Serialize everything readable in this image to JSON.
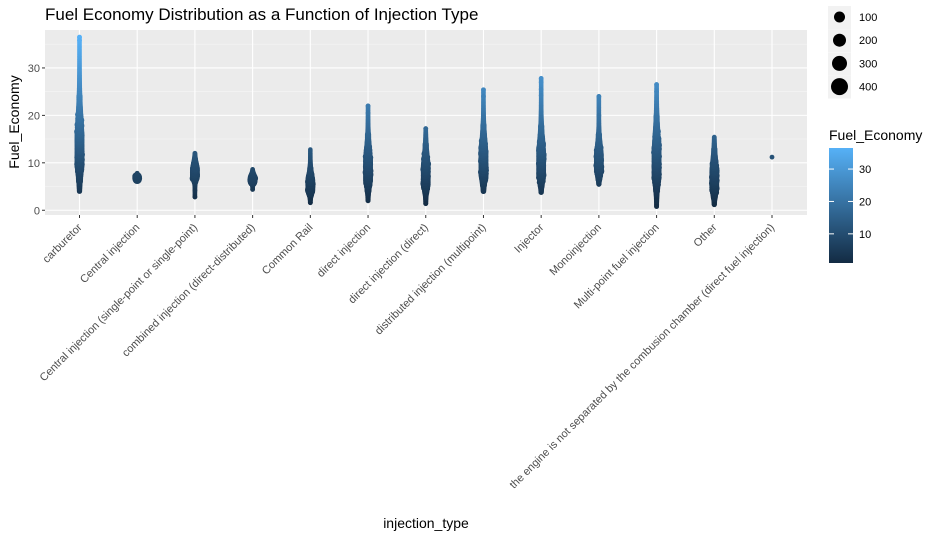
{
  "chart_data": {
    "type": "scatter",
    "title": "Fuel Economy Distribution as a Function of Injection Type",
    "xlabel": "injection_type",
    "ylabel": "Fuel_Economy",
    "ylim": [
      -1,
      38
    ],
    "yticks": [
      0,
      10,
      20,
      30
    ],
    "grid": true,
    "categories": [
      "carburetor",
      "Central injection",
      "Central injection (single-point or single-point)",
      "combined injection (direct-distributed)",
      "Common Rail",
      "direct injection",
      "direct injection (direct)",
      "distributed injection (multipoint)",
      "Injector",
      "Monoinjection",
      "Multi-point fuel injection",
      "Other",
      "the engine is not separated by the combusion chamber (direct fuel injection)"
    ],
    "series": [
      {
        "category": "carburetor",
        "min": 4,
        "max": 36.5,
        "bulk_low": 6,
        "bulk_high": 24,
        "outliers": [
          36.5,
          35.8
        ]
      },
      {
        "category": "Central injection",
        "min": 6.2,
        "max": 7.8,
        "bulk_low": 6.3,
        "bulk_high": 7.5,
        "outliers": []
      },
      {
        "category": "Central injection (single-point or single-point)",
        "min": 2.8,
        "max": 12,
        "bulk_low": 6,
        "bulk_high": 11,
        "outliers": [
          2.8,
          4.2
        ]
      },
      {
        "category": "combined injection (direct-distributed)",
        "min": 4.4,
        "max": 8.6,
        "bulk_low": 5.5,
        "bulk_high": 8,
        "outliers": [
          4.4
        ]
      },
      {
        "category": "Common Rail",
        "min": 1.6,
        "max": 12.8,
        "bulk_low": 3,
        "bulk_high": 9,
        "outliers": [
          1.6,
          2.2
        ]
      },
      {
        "category": "direct injection",
        "min": 2,
        "max": 22,
        "bulk_low": 4,
        "bulk_high": 16,
        "outliers": [
          22,
          20.5
        ]
      },
      {
        "category": "direct injection (direct)",
        "min": 1.4,
        "max": 17.2,
        "bulk_low": 3.5,
        "bulk_high": 14,
        "outliers": [
          1.4,
          17.2
        ]
      },
      {
        "category": "distributed injection (multipoint)",
        "min": 4,
        "max": 25.4,
        "bulk_low": 5,
        "bulk_high": 18,
        "outliers": [
          25.4,
          24
        ]
      },
      {
        "category": "Injector",
        "min": 3.8,
        "max": 27.8,
        "bulk_low": 5,
        "bulk_high": 18,
        "outliers": [
          27.8,
          27,
          25.5,
          24.2
        ]
      },
      {
        "category": "Monoinjection",
        "min": 5.5,
        "max": 24,
        "bulk_low": 6.5,
        "bulk_high": 16,
        "outliers": [
          24,
          20
        ]
      },
      {
        "category": "Multi-point fuel injection",
        "min": 0.8,
        "max": 26.5,
        "bulk_low": 4,
        "bulk_high": 20,
        "outliers": [
          26.5,
          25,
          2.2,
          0.8
        ]
      },
      {
        "category": "Other",
        "min": 1.2,
        "max": 15.4,
        "bulk_low": 2.5,
        "bulk_high": 13,
        "outliers": [
          1.2
        ]
      },
      {
        "category": "the engine is not separated by the combusion chamber (direct fuel injection)",
        "min": 11.2,
        "max": 11.2,
        "bulk_low": 11.2,
        "bulk_high": 11.2,
        "outliers": [
          11.2
        ]
      }
    ],
    "size_legend": {
      "title": "",
      "entries": [
        100,
        200,
        300,
        400
      ],
      "labels": [
        "100",
        "200",
        "300",
        "400"
      ],
      "placement": "top-right"
    },
    "color_legend": {
      "title": "Fuel_Economy",
      "labels": [
        "30",
        "20",
        "10"
      ],
      "ticks": [
        30,
        20,
        10
      ],
      "range": [
        1,
        36.5
      ],
      "low_color": "#132B43",
      "high_color": "#56B1F7",
      "placement": "right"
    },
    "colors": {
      "panel_background": "#EBEBEB",
      "grid_major": "#FFFFFF",
      "axis_text": "#4D4D4D",
      "title_text": "#000000"
    }
  }
}
